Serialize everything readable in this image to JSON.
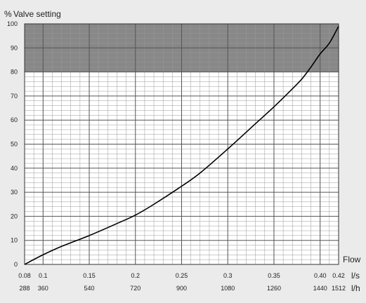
{
  "chart_data": {
    "type": "line",
    "y_unit_label": "%",
    "title": "Valve setting",
    "x_title": "Flow",
    "x_unit_primary": "l/s",
    "x_unit_secondary": "l/h",
    "xlim": [
      0.08,
      0.42
    ],
    "ylim": [
      0,
      100
    ],
    "shaded_region_y": [
      80,
      100
    ],
    "y_ticks": [
      0,
      10,
      20,
      30,
      40,
      50,
      60,
      70,
      80,
      90,
      100
    ],
    "x_ticks_ls": [
      {
        "value": 0.08,
        "label": "0.08"
      },
      {
        "value": 0.1,
        "label": "0.1"
      },
      {
        "value": 0.15,
        "label": "0.15"
      },
      {
        "value": 0.2,
        "label": "0.2"
      },
      {
        "value": 0.25,
        "label": "0.25"
      },
      {
        "value": 0.3,
        "label": "0.3"
      },
      {
        "value": 0.35,
        "label": "0.35"
      },
      {
        "value": 0.4,
        "label": "0.40"
      },
      {
        "value": 0.42,
        "label": "0.42"
      }
    ],
    "x_ticks_lh": [
      {
        "value": 0.08,
        "label": "288"
      },
      {
        "value": 0.1,
        "label": "360"
      },
      {
        "value": 0.15,
        "label": "540"
      },
      {
        "value": 0.2,
        "label": "720"
      },
      {
        "value": 0.25,
        "label": "900"
      },
      {
        "value": 0.3,
        "label": "1080"
      },
      {
        "value": 0.35,
        "label": "1260"
      },
      {
        "value": 0.4,
        "label": "1440"
      },
      {
        "value": 0.42,
        "label": "1512"
      }
    ],
    "grid": true,
    "series": [
      {
        "x": [
          0.08,
          0.1,
          0.12,
          0.15,
          0.18,
          0.2,
          0.22,
          0.25,
          0.27,
          0.3,
          0.33,
          0.35,
          0.37,
          0.38,
          0.39,
          0.4,
          0.41,
          0.42
        ],
        "y": [
          0,
          4,
          7.5,
          12,
          17,
          20.5,
          25,
          32.5,
          38,
          48,
          58.5,
          65.5,
          73,
          77,
          82,
          87.5,
          92,
          99
        ]
      }
    ],
    "colors": {
      "line": "#000000",
      "shaded": "#888888",
      "grid_major": "#555555",
      "grid_minor": "#9a9a9a",
      "plot_bg": "#ffffff",
      "page_bg": "#ebebeb"
    }
  }
}
